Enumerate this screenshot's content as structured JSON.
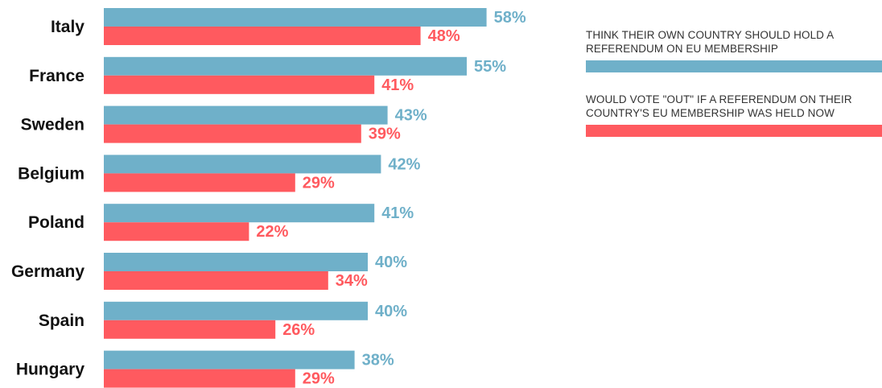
{
  "chart_data": {
    "type": "bar",
    "orientation": "horizontal",
    "categories": [
      "Italy",
      "France",
      "Sweden",
      "Belgium",
      "Poland",
      "Germany",
      "Spain",
      "Hungary"
    ],
    "series": [
      {
        "name": "THINK THEIR OWN COUNTRY SHOULD  HOLD A REFERENDUM ON  EU MEMBERSHIP",
        "color": "#6fb0c9",
        "values": [
          58,
          55,
          43,
          42,
          41,
          40,
          40,
          38
        ],
        "labels": [
          "58%",
          "55%",
          "43%",
          "42%",
          "41%",
          "40%",
          "40%",
          "38%"
        ]
      },
      {
        "name": "WOULD VOTE \"OUT\"  IF A REFERENDUM ON THEIR COUNTRY'S EU MEMBERSHIP WAS HELD NOW",
        "color": "#ff5a5f",
        "values": [
          48,
          41,
          39,
          29,
          22,
          34,
          26,
          29
        ],
        "labels": [
          "48%",
          "41%",
          "39%",
          "29%",
          "22%",
          "34%",
          "26%",
          "29%"
        ]
      }
    ],
    "unit": "%",
    "xlim": [
      0,
      100
    ],
    "grid": false,
    "legend_position": "top-right"
  },
  "legend": {
    "item1_line1": "THINK THEIR OWN COUNTRY SHOULD  HOLD A",
    "item1_line2": "REFERENDUM ON  EU MEMBERSHIP",
    "item2_line1": "WOULD VOTE \"OUT\"  IF A REFERENDUM ON THEIR",
    "item2_line2": "COUNTRY'S EU MEMBERSHIP WAS HELD NOW"
  }
}
